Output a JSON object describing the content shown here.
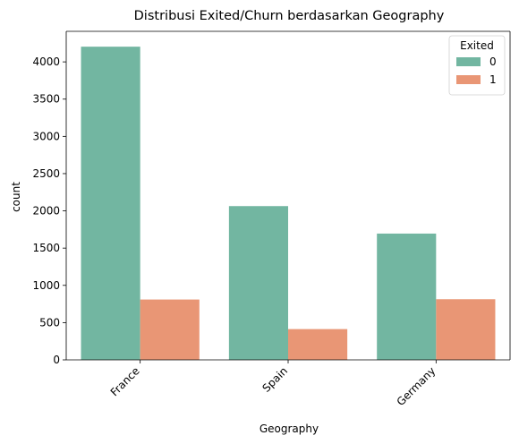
{
  "chart_data": {
    "type": "bar",
    "title": "Distribusi Exited/Churn berdasarkan Geography",
    "xlabel": "Geography",
    "ylabel": "count",
    "categories": [
      "France",
      "Spain",
      "Germany"
    ],
    "series": [
      {
        "name": "0",
        "values": [
          4204,
          2064,
          1695
        ],
        "color": "#72b6a1"
      },
      {
        "name": "1",
        "values": [
          810,
          413,
          814
        ],
        "color": "#e99675"
      }
    ],
    "ylim": [
      0,
      4410
    ],
    "yticks": [
      0,
      500,
      1000,
      1500,
      2000,
      2500,
      3000,
      3500,
      4000
    ],
    "legend": {
      "title": "Exited",
      "placement": "top-right"
    },
    "grid": false
  }
}
